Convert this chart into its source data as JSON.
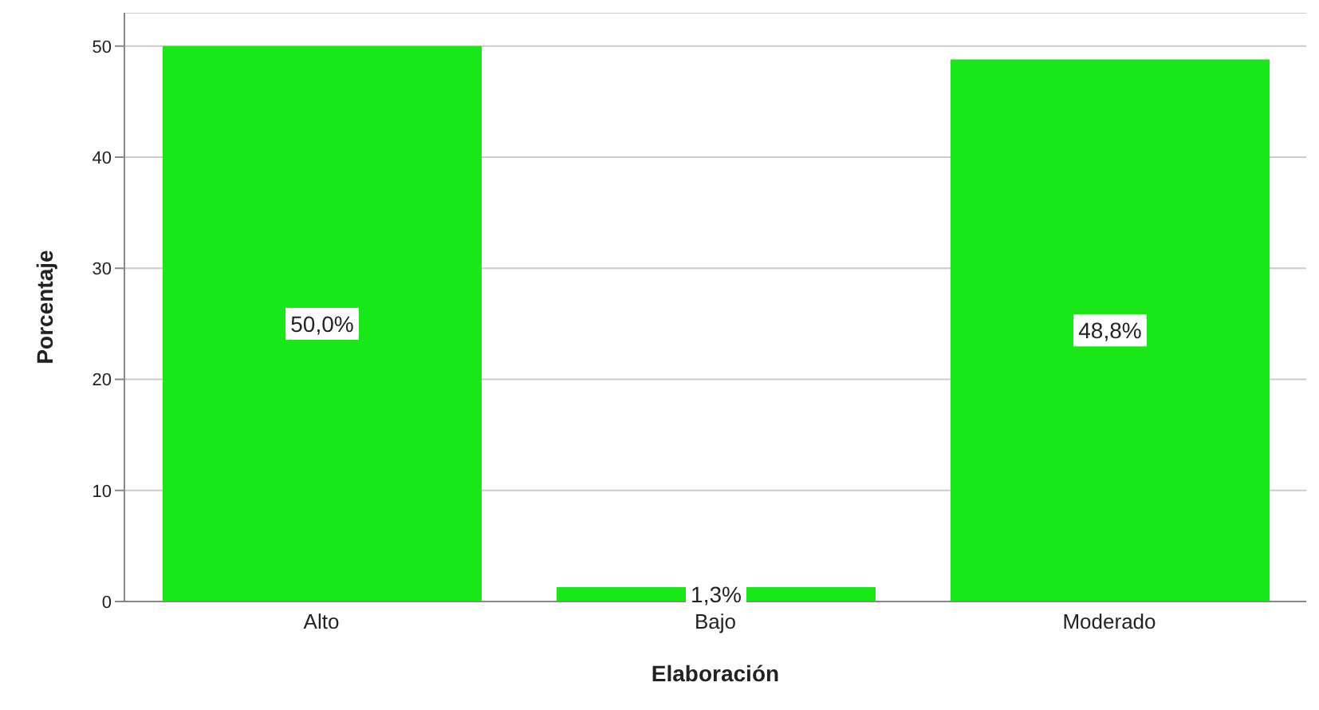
{
  "chart_data": {
    "type": "bar",
    "xlabel": "Elaboración",
    "ylabel": "Porcentaje",
    "categories": [
      "Alto",
      "Bajo",
      "Moderado"
    ],
    "values": [
      50.0,
      1.3,
      48.8
    ],
    "value_labels": [
      "50,0%",
      "1,3%",
      "48,8%"
    ],
    "color": "#18e818",
    "ylim": [
      0,
      53
    ],
    "yticks": [
      0,
      10,
      20,
      30,
      40,
      50
    ],
    "grid": "y"
  }
}
